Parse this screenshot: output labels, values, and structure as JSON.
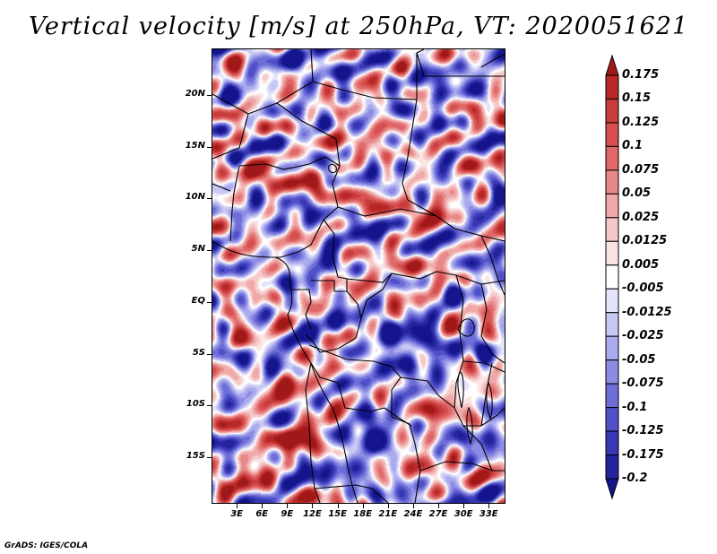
{
  "title": "Vertical velocity [m/s] at 250hPa, VT: 2020051621",
  "credit": "GrADS: IGES/COLA",
  "map": {
    "lat_range": [
      -19.5,
      24.5
    ],
    "lon_range": [
      0,
      35
    ],
    "lat_labels": [
      {
        "value": 20,
        "label": "20N"
      },
      {
        "value": 15,
        "label": "15N"
      },
      {
        "value": 10,
        "label": "10N"
      },
      {
        "value": 5,
        "label": "5N"
      },
      {
        "value": 0,
        "label": "EQ"
      },
      {
        "value": -5,
        "label": "5S"
      },
      {
        "value": -10,
        "label": "10S"
      },
      {
        "value": -15,
        "label": "15S"
      }
    ],
    "lon_labels": [
      {
        "value": 3,
        "label": "3E"
      },
      {
        "value": 6,
        "label": "6E"
      },
      {
        "value": 9,
        "label": "9E"
      },
      {
        "value": 12,
        "label": "12E"
      },
      {
        "value": 15,
        "label": "15E"
      },
      {
        "value": 18,
        "label": "18E"
      },
      {
        "value": 21,
        "label": "21E"
      },
      {
        "value": 24,
        "label": "24E"
      },
      {
        "value": 27,
        "label": "27E"
      },
      {
        "value": 30,
        "label": "30E"
      },
      {
        "value": 33,
        "label": "33E"
      }
    ]
  },
  "colorbar": {
    "labels": [
      "0.175",
      "0.15",
      "0.125",
      "0.1",
      "0.075",
      "0.05",
      "0.025",
      "0.0125",
      "0.005",
      "-0.005",
      "-0.0125",
      "-0.025",
      "-0.05",
      "-0.075",
      "-0.1",
      "-0.125",
      "-0.175",
      "-0.2"
    ],
    "colors": [
      "#a01818",
      "#b82828",
      "#c83c3c",
      "#d65050",
      "#e06868",
      "#e88888",
      "#f0a8a8",
      "#f6c8c8",
      "#fbe4e4",
      "#ffffff",
      "#e4e4fb",
      "#c8c8f4",
      "#aaaaee",
      "#8c8ce4",
      "#6e6ed8",
      "#5050c8",
      "#3838b4",
      "#24249c",
      "#14148c"
    ]
  }
}
